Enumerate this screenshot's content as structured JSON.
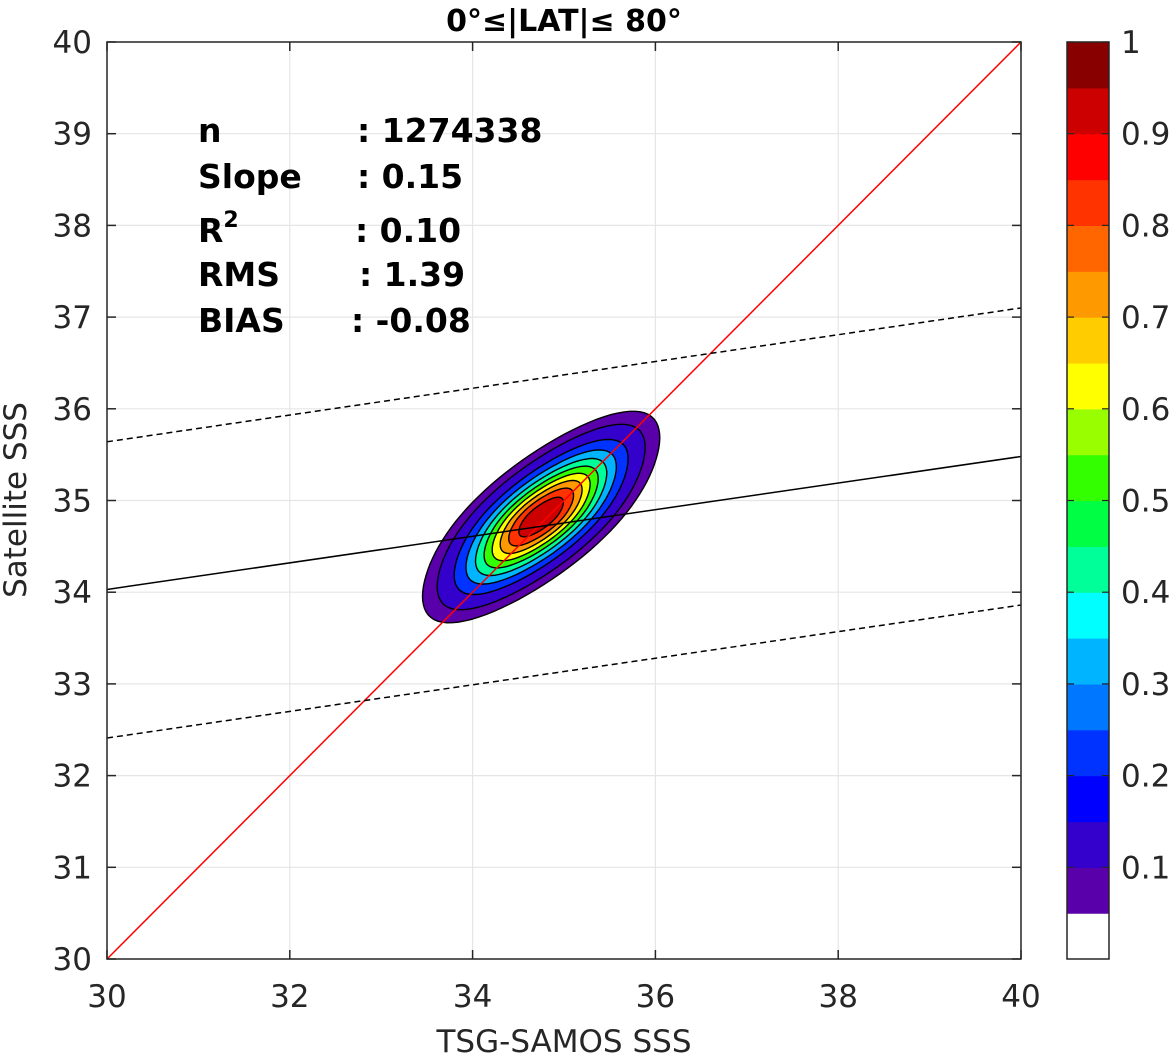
{
  "chart_data": {
    "type": "contour",
    "title": "0°≤|LAT|≤ 80°",
    "xlabel": "TSG-SAMOS SSS",
    "ylabel": "Satellite SSS",
    "xlim": [
      30,
      40
    ],
    "ylim": [
      30,
      40
    ],
    "xticks": [
      "30",
      "32",
      "34",
      "36",
      "38",
      "40"
    ],
    "yticks": [
      "30",
      "31",
      "32",
      "33",
      "34",
      "35",
      "36",
      "37",
      "38",
      "39",
      "40"
    ],
    "grid": true,
    "stats": [
      {
        "label": "n",
        "sep": ": ",
        "value": "1274338"
      },
      {
        "label": "Slope",
        "sep": ": ",
        "value": "0.15"
      },
      {
        "label": "R",
        "sup": "2",
        "sep": ": ",
        "value": "0.10"
      },
      {
        "label": "RMS",
        "sep": ": ",
        "value": "1.39"
      },
      {
        "label": "BIAS",
        "sep": ": ",
        "value": "-0.08"
      }
    ],
    "lines": [
      {
        "name": "one-to-one",
        "style": "solid",
        "color": "#ff0000",
        "x": [
          30,
          40
        ],
        "y": [
          30,
          40
        ]
      },
      {
        "name": "regression",
        "style": "solid",
        "color": "#000000",
        "x": [
          30,
          40
        ],
        "y": [
          34.03,
          35.48
        ]
      },
      {
        "name": "upper-bound",
        "style": "dashed",
        "color": "#000000",
        "x": [
          30,
          40
        ],
        "y": [
          35.64,
          37.1
        ]
      },
      {
        "name": "lower-bound",
        "style": "dashed",
        "color": "#000000",
        "x": [
          30,
          40
        ],
        "y": [
          32.41,
          33.86
        ]
      }
    ],
    "density": {
      "center": [
        34.75,
        34.82
      ],
      "rotation_deg": 38,
      "max_semi_axes": [
        1.62,
        0.62
      ],
      "levels": [
        0.05,
        0.1,
        0.2,
        0.3,
        0.4,
        0.5,
        0.6,
        0.7,
        0.8,
        0.9
      ]
    },
    "colorbar": {
      "min": 0,
      "max": 1,
      "ticks": [
        "0.1",
        "0.2",
        "0.3",
        "0.4",
        "0.5",
        "0.6",
        "0.7",
        "0.8",
        "0.9",
        "1"
      ],
      "colors": [
        "#ffffff",
        "#5a00aa",
        "#3300cc",
        "#0000ff",
        "#0033ff",
        "#0077ff",
        "#00b4ff",
        "#00ffff",
        "#00ff99",
        "#00ff44",
        "#33ff00",
        "#99ff00",
        "#ffff00",
        "#ffcc00",
        "#ff9900",
        "#ff6600",
        "#ff3300",
        "#ff0000",
        "#cc0000",
        "#880000"
      ]
    }
  }
}
